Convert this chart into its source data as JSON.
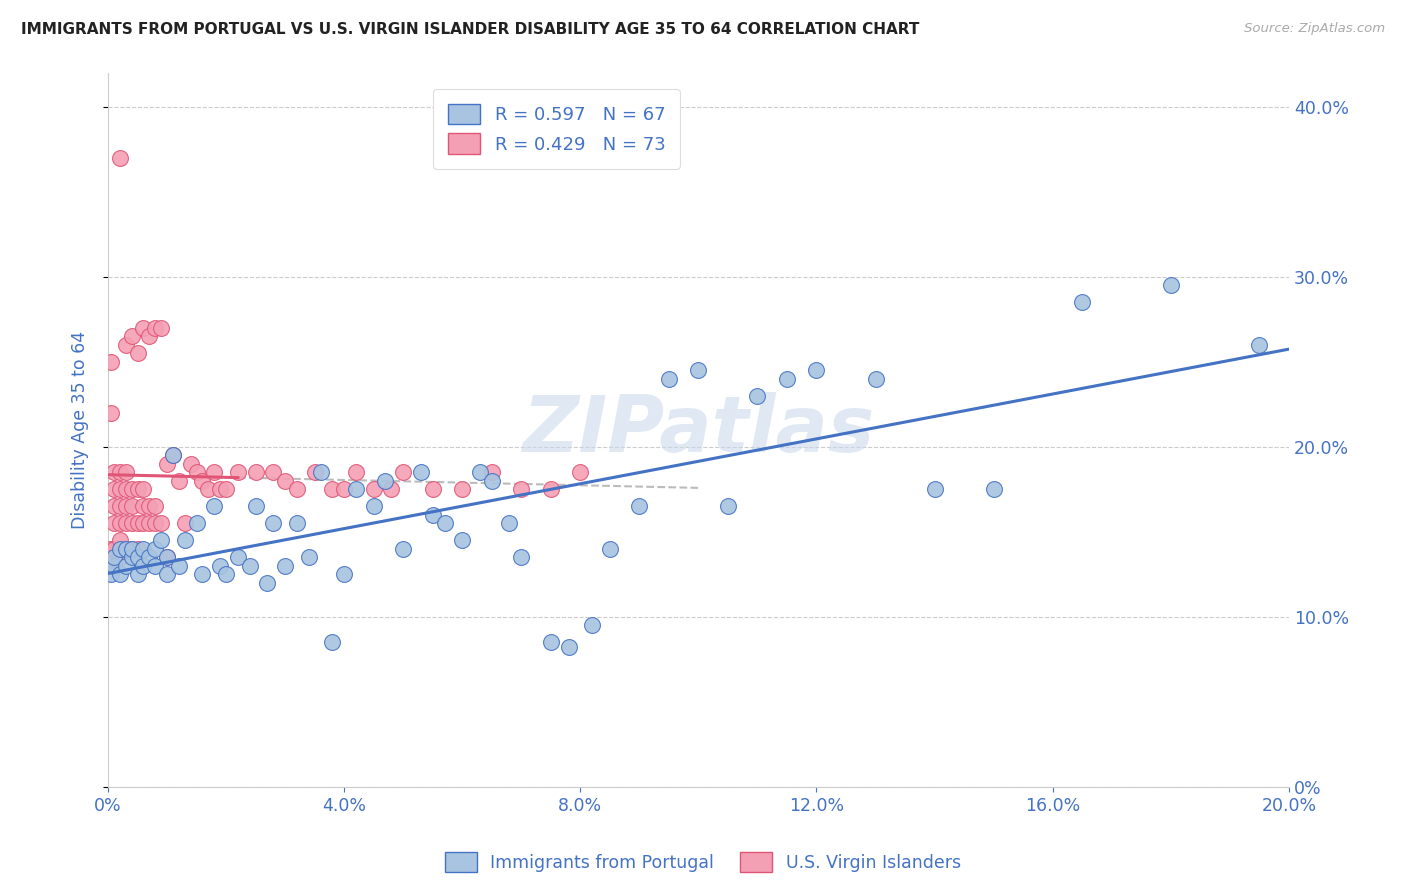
{
  "title": "IMMIGRANTS FROM PORTUGAL VS U.S. VIRGIN ISLANDER DISABILITY AGE 35 TO 64 CORRELATION CHART",
  "source": "Source: ZipAtlas.com",
  "ylabel": "Disability Age 35 to 64",
  "xlim": [
    0.0,
    0.2
  ],
  "ylim": [
    0.0,
    0.42
  ],
  "xticks": [
    0.0,
    0.04,
    0.08,
    0.12,
    0.16,
    0.2
  ],
  "yticks": [
    0.0,
    0.1,
    0.2,
    0.3,
    0.4
  ],
  "blue_R": 0.597,
  "blue_N": 67,
  "pink_R": 0.429,
  "pink_N": 73,
  "blue_color": "#a8c4e0",
  "pink_color": "#f4a0b4",
  "blue_line_color": "#4472c4",
  "pink_line_color": "#e05575",
  "legend_text_color": "#4472c4",
  "watermark": "ZIPatlas",
  "blue_scatter_x": [
    0.0005,
    0.001,
    0.001,
    0.002,
    0.002,
    0.003,
    0.003,
    0.004,
    0.004,
    0.005,
    0.005,
    0.006,
    0.006,
    0.007,
    0.008,
    0.008,
    0.009,
    0.01,
    0.01,
    0.011,
    0.012,
    0.013,
    0.015,
    0.016,
    0.018,
    0.019,
    0.02,
    0.022,
    0.024,
    0.025,
    0.027,
    0.028,
    0.03,
    0.032,
    0.034,
    0.036,
    0.038,
    0.04,
    0.042,
    0.045,
    0.047,
    0.05,
    0.053,
    0.055,
    0.057,
    0.06,
    0.063,
    0.065,
    0.068,
    0.07,
    0.075,
    0.078,
    0.082,
    0.085,
    0.09,
    0.095,
    0.1,
    0.105,
    0.11,
    0.115,
    0.12,
    0.13,
    0.14,
    0.15,
    0.165,
    0.18,
    0.195
  ],
  "blue_scatter_y": [
    0.125,
    0.13,
    0.135,
    0.125,
    0.14,
    0.13,
    0.14,
    0.135,
    0.14,
    0.125,
    0.135,
    0.13,
    0.14,
    0.135,
    0.13,
    0.14,
    0.145,
    0.125,
    0.135,
    0.195,
    0.13,
    0.145,
    0.155,
    0.125,
    0.165,
    0.13,
    0.125,
    0.135,
    0.13,
    0.165,
    0.12,
    0.155,
    0.13,
    0.155,
    0.135,
    0.185,
    0.085,
    0.125,
    0.175,
    0.165,
    0.18,
    0.14,
    0.185,
    0.16,
    0.155,
    0.145,
    0.185,
    0.18,
    0.155,
    0.135,
    0.085,
    0.082,
    0.095,
    0.14,
    0.165,
    0.24,
    0.245,
    0.165,
    0.23,
    0.24,
    0.245,
    0.24,
    0.175,
    0.175,
    0.285,
    0.295,
    0.26
  ],
  "pink_scatter_x": [
    0.0003,
    0.0005,
    0.0005,
    0.001,
    0.001,
    0.001,
    0.001,
    0.001,
    0.001,
    0.002,
    0.002,
    0.002,
    0.002,
    0.002,
    0.002,
    0.002,
    0.003,
    0.003,
    0.003,
    0.003,
    0.003,
    0.003,
    0.004,
    0.004,
    0.004,
    0.004,
    0.004,
    0.005,
    0.005,
    0.005,
    0.005,
    0.006,
    0.006,
    0.006,
    0.006,
    0.007,
    0.007,
    0.007,
    0.008,
    0.008,
    0.008,
    0.009,
    0.009,
    0.01,
    0.01,
    0.011,
    0.012,
    0.013,
    0.014,
    0.015,
    0.016,
    0.017,
    0.018,
    0.019,
    0.02,
    0.022,
    0.025,
    0.028,
    0.03,
    0.032,
    0.035,
    0.038,
    0.04,
    0.042,
    0.045,
    0.048,
    0.05,
    0.055,
    0.06,
    0.065,
    0.07,
    0.075,
    0.08
  ],
  "pink_scatter_y": [
    0.14,
    0.22,
    0.25,
    0.13,
    0.14,
    0.155,
    0.165,
    0.175,
    0.185,
    0.135,
    0.145,
    0.155,
    0.165,
    0.175,
    0.185,
    0.37,
    0.14,
    0.155,
    0.165,
    0.175,
    0.185,
    0.26,
    0.14,
    0.155,
    0.165,
    0.175,
    0.265,
    0.14,
    0.155,
    0.175,
    0.255,
    0.155,
    0.165,
    0.175,
    0.27,
    0.155,
    0.165,
    0.265,
    0.155,
    0.165,
    0.27,
    0.155,
    0.27,
    0.135,
    0.19,
    0.195,
    0.18,
    0.155,
    0.19,
    0.185,
    0.18,
    0.175,
    0.185,
    0.175,
    0.175,
    0.185,
    0.185,
    0.185,
    0.18,
    0.175,
    0.185,
    0.175,
    0.175,
    0.185,
    0.175,
    0.175,
    0.185,
    0.175,
    0.175,
    0.185,
    0.175,
    0.175,
    0.185
  ]
}
